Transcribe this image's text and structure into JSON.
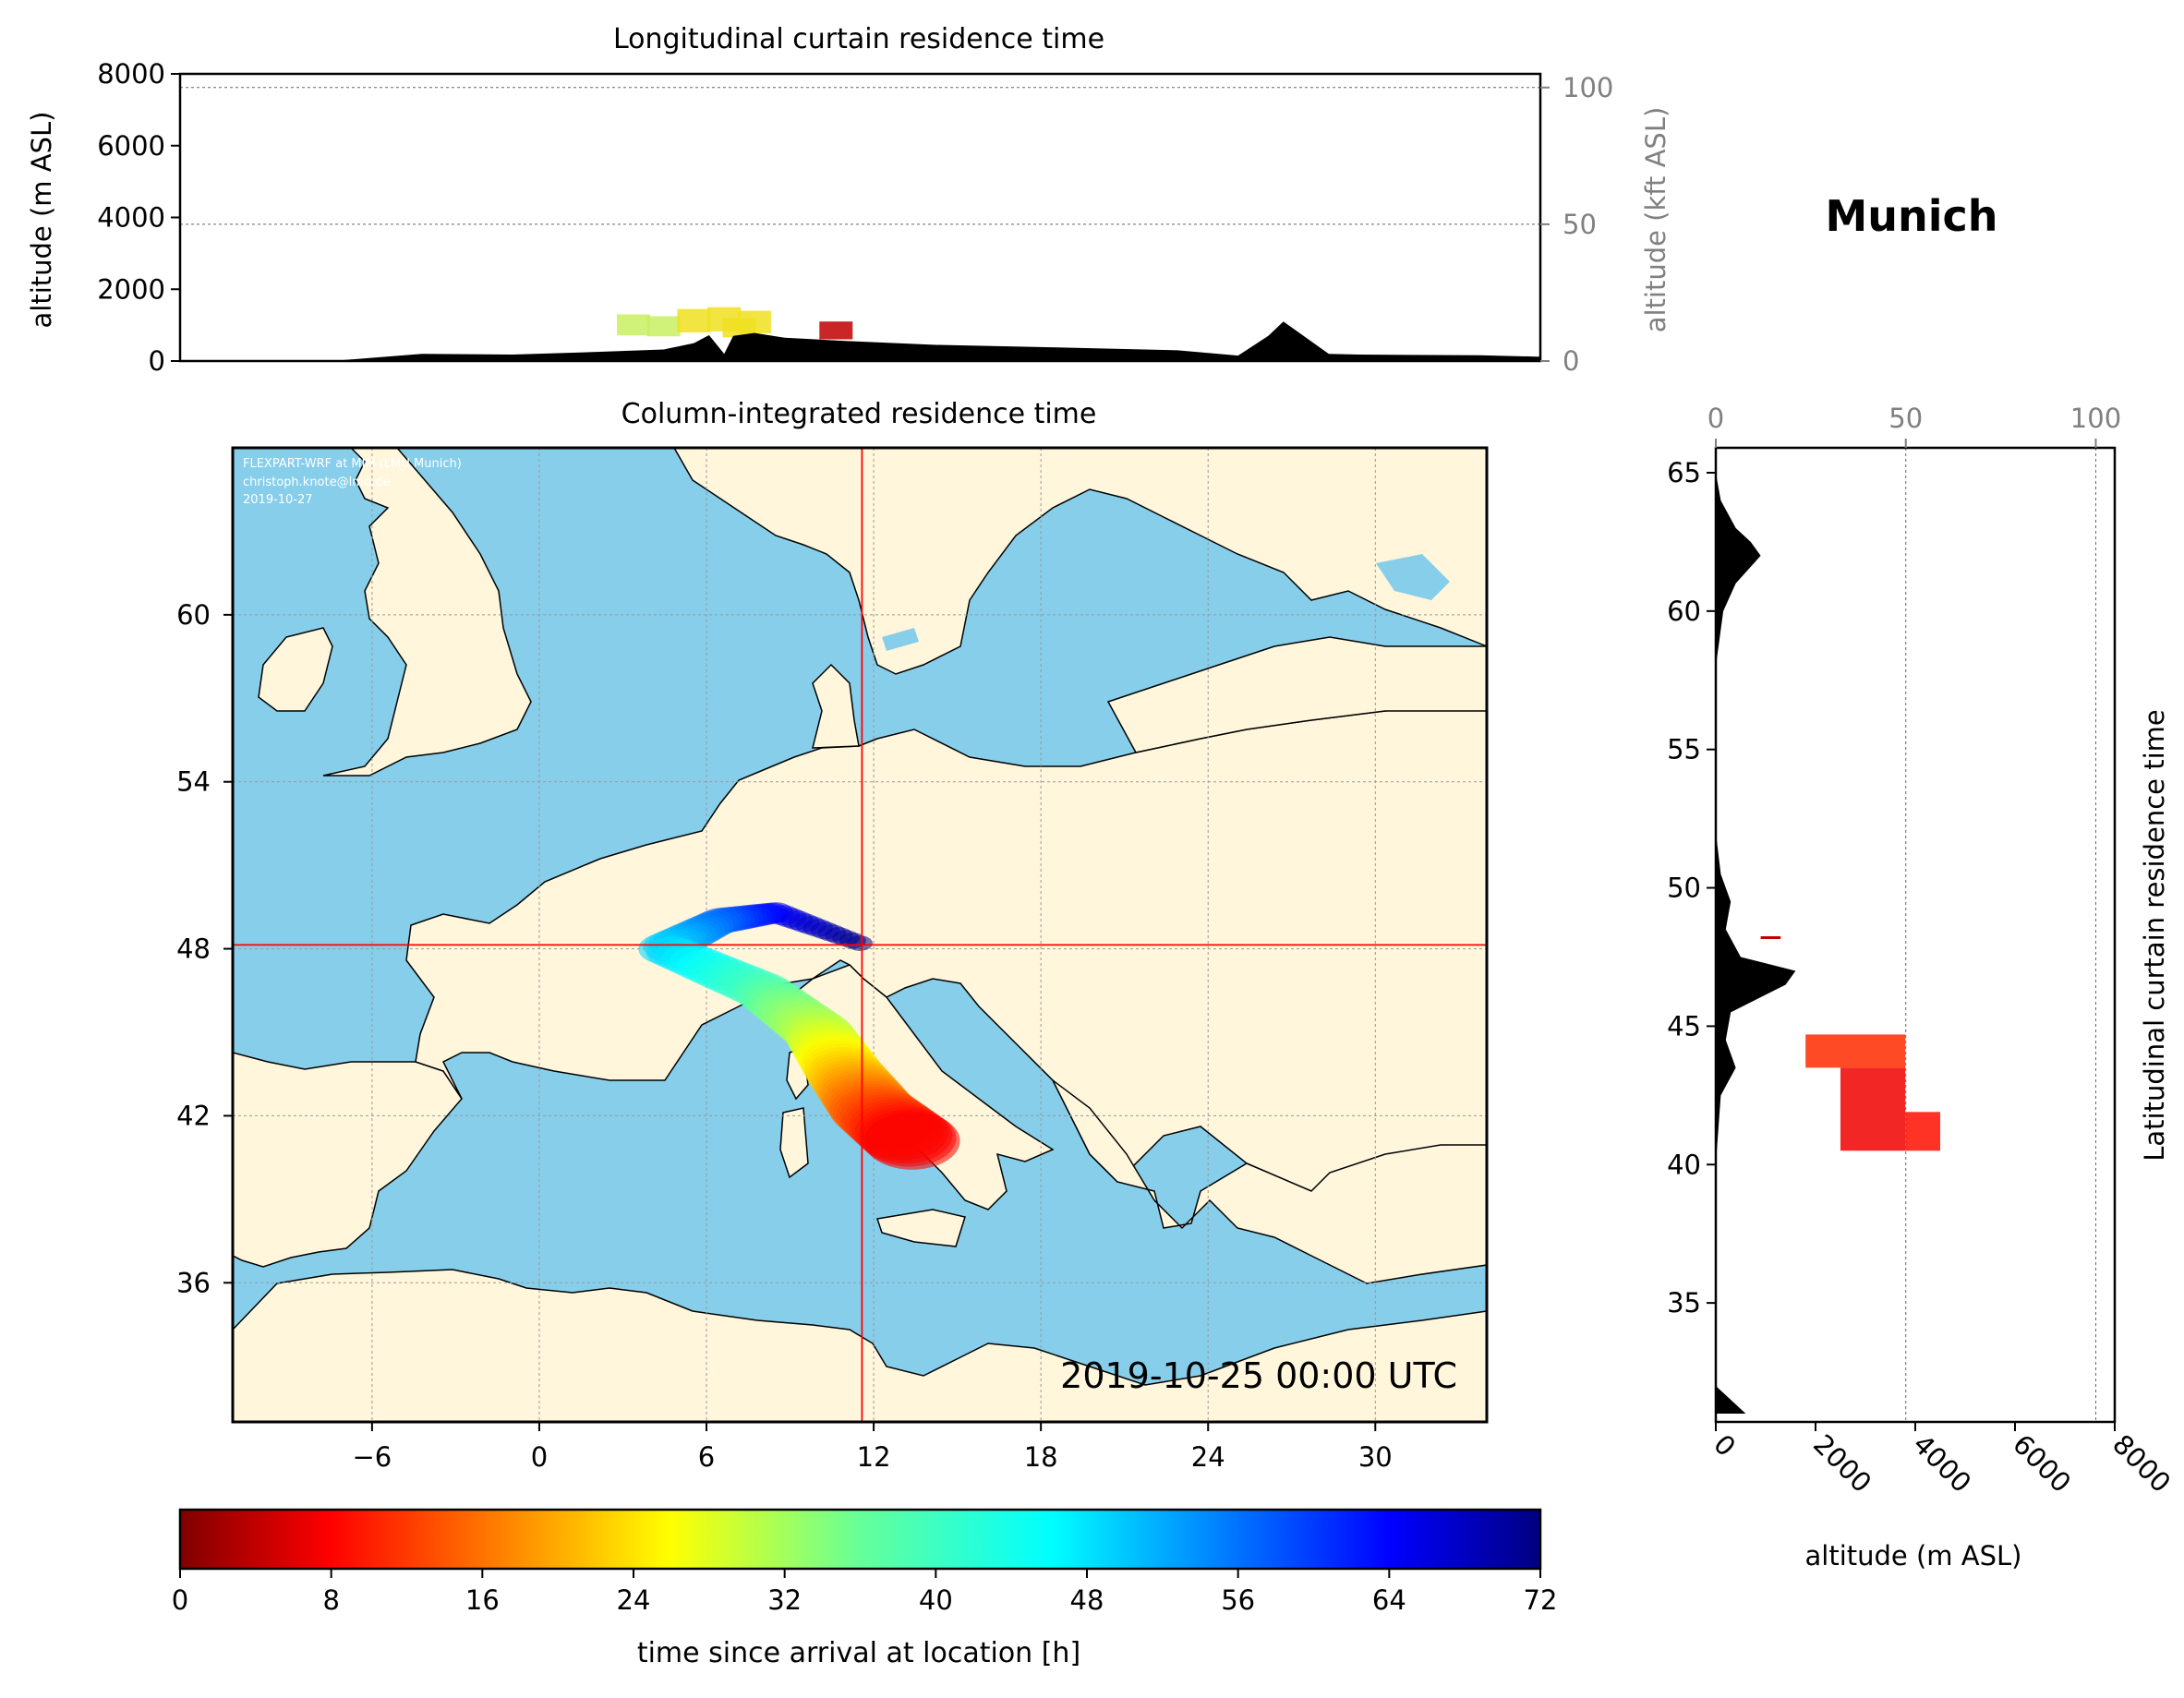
{
  "location_title": "Munich",
  "timestamp": "2019-10-25 00:00 UTC",
  "credit": {
    "line1": "FLEXPART-WRF at MIM (LMU Munich)",
    "line2": "christoph.knote@lmu.de",
    "line3": "2019-10-27"
  },
  "chart_data": [
    {
      "type": "area",
      "title": "Longitudinal curtain residence time",
      "ylabel": "altitude (m ASL)",
      "ylabel_right": "altitude (kft ASL)",
      "ylim": [
        0,
        8000
      ],
      "yticks": [
        "0",
        "2000",
        "4000",
        "6000",
        "8000"
      ],
      "yticks_right": [
        "0",
        "50",
        "100"
      ],
      "x": [
        -11,
        -6,
        -3,
        0,
        3,
        5,
        6,
        6.5,
        7,
        7.3,
        8,
        9,
        11,
        14,
        18,
        22,
        24,
        25,
        25.5,
        26,
        27,
        28,
        32,
        34
      ],
      "terrain_m": [
        0,
        0,
        200,
        180,
        260,
        320,
        500,
        720,
        200,
        700,
        780,
        650,
        560,
        450,
        380,
        300,
        150,
        700,
        1100,
        800,
        200,
        180,
        160,
        120
      ],
      "plume_m": [
        [
          4,
          1300
        ],
        [
          5,
          1250
        ],
        [
          6,
          1450
        ],
        [
          7,
          1500
        ],
        [
          7.5,
          1200
        ],
        [
          8,
          1400
        ],
        [
          10.7,
          1100
        ]
      ]
    },
    {
      "type": "heatmap",
      "title": "Column-integrated residence time",
      "xticks": [
        "−6",
        "0",
        "6",
        "12",
        "18",
        "24",
        "30"
      ],
      "yticks": [
        "36",
        "42",
        "48",
        "54",
        "60"
      ],
      "xlim": [
        -11,
        34
      ],
      "ylim": [
        31,
        66
      ],
      "release_point": {
        "lon": 11.58,
        "lat": 48.14
      },
      "trajectories": [
        {
          "arrival_time_h": 0,
          "lon": 11.5,
          "lat": 48.2
        },
        {
          "arrival_time_h": 8,
          "lon": 8.5,
          "lat": 49.3
        },
        {
          "arrival_time_h": 16,
          "lon": 6.5,
          "lat": 49.0
        },
        {
          "arrival_time_h": 24,
          "lon": 4.5,
          "lat": 48.0
        },
        {
          "arrival_time_h": 32,
          "lon": 8.0,
          "lat": 46.5
        },
        {
          "arrival_time_h": 40,
          "lon": 10.0,
          "lat": 45.0
        },
        {
          "arrival_time_h": 48,
          "lon": 11.0,
          "lat": 43.5
        },
        {
          "arrival_time_h": 56,
          "lon": 12.0,
          "lat": 42.2
        },
        {
          "arrival_time_h": 64,
          "lon": 13.5,
          "lat": 41.0
        }
      ]
    },
    {
      "type": "area",
      "title": "Latitudinal curtain residence time",
      "xlabel": "altitude (m ASL)",
      "xlim": [
        0,
        8000
      ],
      "xticks": [
        "0",
        "2000",
        "4000",
        "6000",
        "8000"
      ],
      "xticks_top": [
        "0",
        "50",
        "100"
      ],
      "yticks": [
        "35",
        "40",
        "45",
        "50",
        "55",
        "60",
        "65"
      ],
      "ylim": [
        30.7,
        65.9
      ],
      "lat": [
        31,
        32,
        34,
        36,
        40,
        42.5,
        43.5,
        44.5,
        45.5,
        46.5,
        47,
        47.5,
        48.5,
        49.5,
        50.5,
        52,
        54,
        58,
        60,
        61,
        62,
        62.5,
        63,
        64,
        65
      ],
      "terrain_m": [
        600,
        0,
        0,
        0,
        0,
        100,
        400,
        200,
        300,
        1400,
        1600,
        500,
        200,
        300,
        100,
        0,
        0,
        0,
        150,
        400,
        900,
        700,
        400,
        100,
        0
      ],
      "plume_blocks": [
        {
          "lat": [
            43.5,
            44.7
          ],
          "alt_m": [
            1800,
            3800
          ],
          "arrival_time_h": 60
        },
        {
          "lat": [
            40.5,
            43.5
          ],
          "alt_m": [
            2500,
            3800
          ],
          "arrival_time_h": 64
        },
        {
          "lat": [
            40.5,
            41.9
          ],
          "alt_m": [
            3800,
            4500
          ],
          "arrival_time_h": 62
        }
      ]
    }
  ],
  "colorbar": {
    "label": "time since arrival at location [h]",
    "ticks": [
      "0",
      "8",
      "16",
      "24",
      "32",
      "40",
      "48",
      "56",
      "64",
      "72"
    ],
    "min": 0,
    "max": 72
  },
  "colors": {
    "sea": "#87ceeb",
    "land": "#fff6dc",
    "terrain": "#000000",
    "crosshair": "#ff0000",
    "colormap": "jet"
  }
}
